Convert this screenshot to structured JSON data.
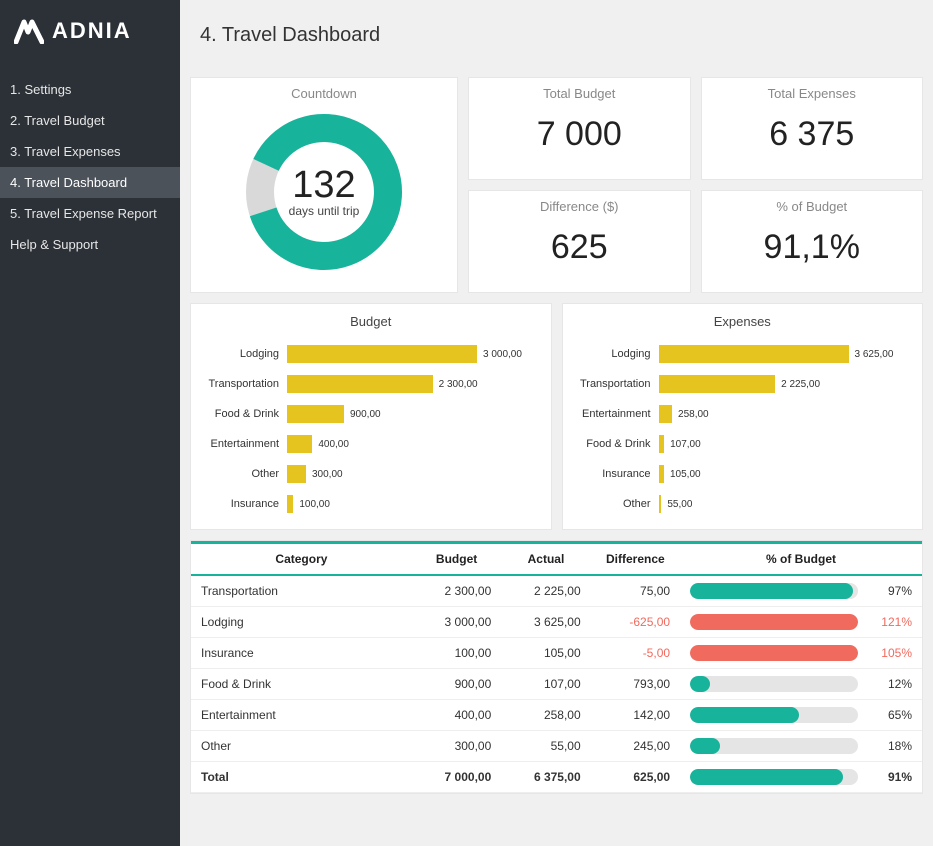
{
  "brand": {
    "name": "ADNIA"
  },
  "page": {
    "title": "4. Travel Dashboard"
  },
  "nav": {
    "items": [
      {
        "label": "1. Settings",
        "active": false
      },
      {
        "label": "2. Travel Budget",
        "active": false
      },
      {
        "label": "3. Travel Expenses",
        "active": false
      },
      {
        "label": "4. Travel Dashboard",
        "active": true
      },
      {
        "label": "5. Travel Expense Report",
        "active": false
      },
      {
        "label": "Help & Support",
        "active": false
      }
    ]
  },
  "countdown": {
    "title": "Countdown",
    "value": "132",
    "sublabel": "days until trip",
    "percent": 88,
    "ring_color": "#18b39b",
    "ring_bg": "#d9d9d9"
  },
  "stats": {
    "total_budget": {
      "title": "Total Budget",
      "value": "7 000"
    },
    "total_expenses": {
      "title": "Total Expenses",
      "value": "6 375"
    },
    "difference": {
      "title": "Difference ($)",
      "value": "625"
    },
    "pct_budget": {
      "title": "% of Budget",
      "value": "91,1%"
    }
  },
  "budget_chart": {
    "title": "Budget",
    "bar_color": "#e6c41f",
    "max": 3000,
    "items": [
      {
        "label": "Lodging",
        "value": 3000,
        "text": "3 000,00"
      },
      {
        "label": "Transportation",
        "value": 2300,
        "text": "2 300,00"
      },
      {
        "label": "Food & Drink",
        "value": 900,
        "text": "900,00"
      },
      {
        "label": "Entertainment",
        "value": 400,
        "text": "400,00"
      },
      {
        "label": "Other",
        "value": 300,
        "text": "300,00"
      },
      {
        "label": "Insurance",
        "value": 100,
        "text": "100,00"
      }
    ]
  },
  "expenses_chart": {
    "title": "Expenses",
    "bar_color": "#e6c41f",
    "max": 3625,
    "items": [
      {
        "label": "Lodging",
        "value": 3625,
        "text": "3 625,00"
      },
      {
        "label": "Transportation",
        "value": 2225,
        "text": "2 225,00"
      },
      {
        "label": "Entertainment",
        "value": 258,
        "text": "258,00"
      },
      {
        "label": "Food & Drink",
        "value": 107,
        "text": "107,00"
      },
      {
        "label": "Insurance",
        "value": 105,
        "text": "105,00"
      },
      {
        "label": "Other",
        "value": 55,
        "text": "55,00"
      }
    ]
  },
  "table": {
    "headers": {
      "category": "Category",
      "budget": "Budget",
      "actual": "Actual",
      "difference": "Difference",
      "pct": "% of Budget"
    },
    "colors": {
      "ok": "#18b39b",
      "over": "#f06a5e",
      "track": "#e5e5e5"
    },
    "rows": [
      {
        "category": "Transportation",
        "budget": "2 300,00",
        "actual": "2 225,00",
        "difference": "75,00",
        "diff_neg": false,
        "pct": 97,
        "pct_text": "97%",
        "over": false
      },
      {
        "category": "Lodging",
        "budget": "3 000,00",
        "actual": "3 625,00",
        "difference": "-625,00",
        "diff_neg": true,
        "pct": 121,
        "pct_text": "121%",
        "over": true
      },
      {
        "category": "Insurance",
        "budget": "100,00",
        "actual": "105,00",
        "difference": "-5,00",
        "diff_neg": true,
        "pct": 105,
        "pct_text": "105%",
        "over": true
      },
      {
        "category": "Food & Drink",
        "budget": "900,00",
        "actual": "107,00",
        "difference": "793,00",
        "diff_neg": false,
        "pct": 12,
        "pct_text": "12%",
        "over": false
      },
      {
        "category": "Entertainment",
        "budget": "400,00",
        "actual": "258,00",
        "difference": "142,00",
        "diff_neg": false,
        "pct": 65,
        "pct_text": "65%",
        "over": false
      },
      {
        "category": "Other",
        "budget": "300,00",
        "actual": "55,00",
        "difference": "245,00",
        "diff_neg": false,
        "pct": 18,
        "pct_text": "18%",
        "over": false
      }
    ],
    "total": {
      "category": "Total",
      "budget": "7 000,00",
      "actual": "6 375,00",
      "difference": "625,00",
      "pct": 91,
      "pct_text": "91%",
      "over": false
    }
  }
}
